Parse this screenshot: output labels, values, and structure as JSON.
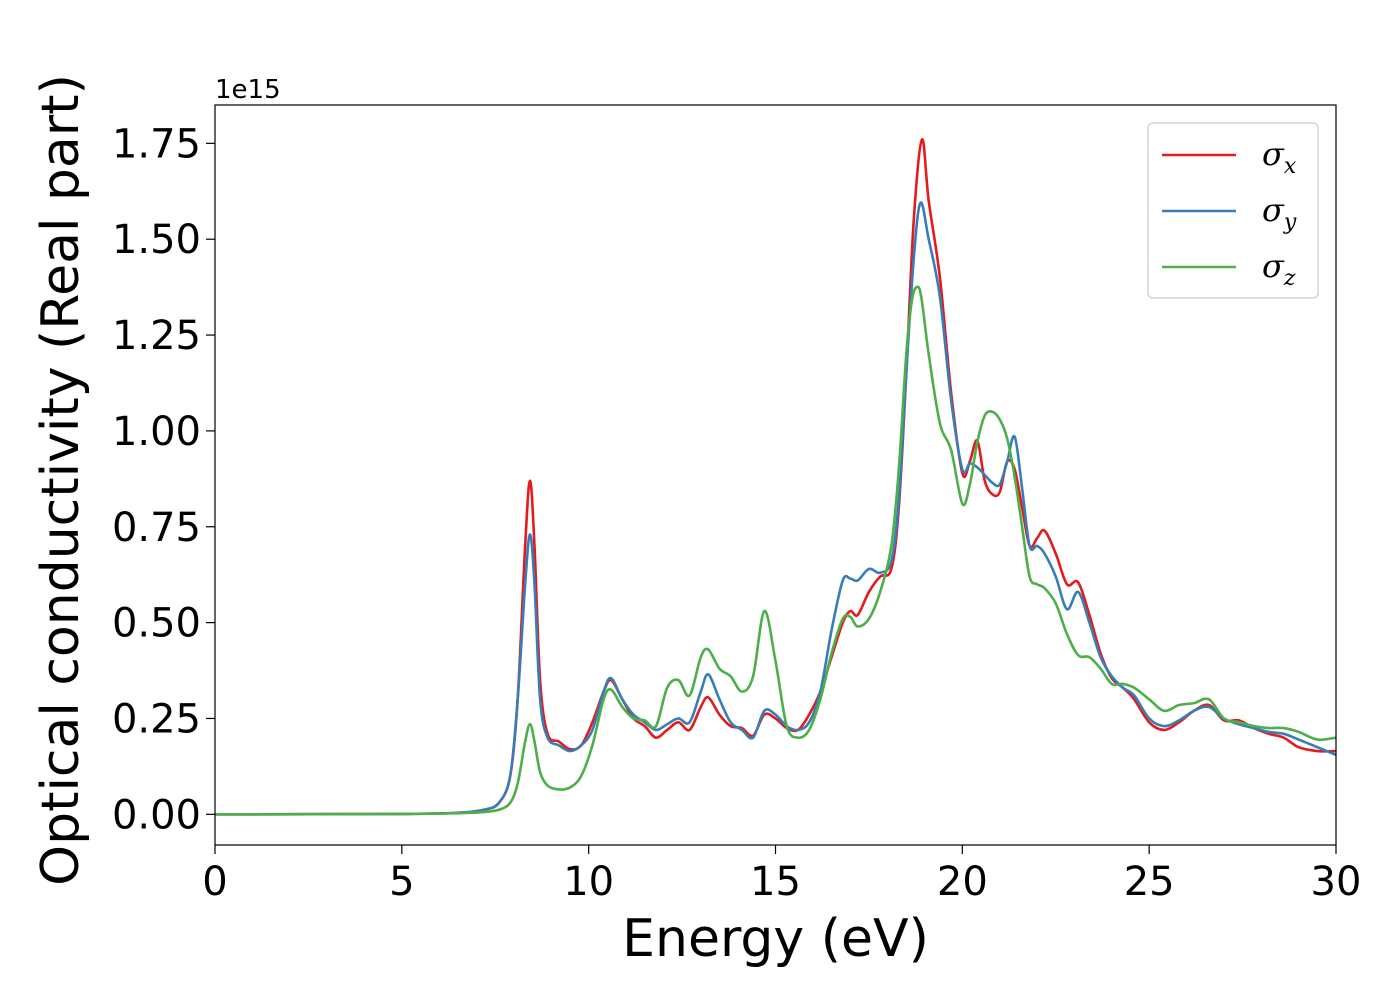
{
  "chart_data": {
    "type": "line",
    "xlabel": "Energy (eV)",
    "ylabel": "Optical conductivity (Real part)",
    "y_offset_label": "1e15",
    "xlim": [
      0,
      30
    ],
    "ylim": [
      -0.08,
      1.85
    ],
    "x_ticks": [
      0,
      5,
      10,
      15,
      20,
      25,
      30
    ],
    "y_ticks": [
      0.0,
      0.25,
      0.5,
      0.75,
      1.0,
      1.25,
      1.5,
      1.75
    ],
    "y_tick_labels": [
      "0.00",
      "0.25",
      "0.50",
      "0.75",
      "1.00",
      "1.25",
      "1.50",
      "1.75"
    ],
    "grid": false,
    "legend_position": "top-right",
    "series": [
      {
        "name": "σ_x",
        "legend_base": "σ",
        "legend_sub": "x",
        "color": "#e41a1c",
        "points": [
          [
            0,
            0
          ],
          [
            5,
            0.001
          ],
          [
            6.5,
            0.004
          ],
          [
            7.2,
            0.012
          ],
          [
            7.6,
            0.03
          ],
          [
            7.9,
            0.1
          ],
          [
            8.1,
            0.3
          ],
          [
            8.3,
            0.7
          ],
          [
            8.43,
            0.87
          ],
          [
            8.55,
            0.7
          ],
          [
            8.7,
            0.35
          ],
          [
            8.9,
            0.21
          ],
          [
            9.2,
            0.19
          ],
          [
            9.5,
            0.17
          ],
          [
            9.8,
            0.18
          ],
          [
            10.1,
            0.24
          ],
          [
            10.4,
            0.32
          ],
          [
            10.6,
            0.35
          ],
          [
            10.9,
            0.3
          ],
          [
            11.2,
            0.25
          ],
          [
            11.5,
            0.23
          ],
          [
            11.8,
            0.2
          ],
          [
            12.1,
            0.22
          ],
          [
            12.4,
            0.24
          ],
          [
            12.7,
            0.22
          ],
          [
            13.0,
            0.28
          ],
          [
            13.2,
            0.305
          ],
          [
            13.5,
            0.26
          ],
          [
            13.8,
            0.23
          ],
          [
            14.1,
            0.225
          ],
          [
            14.4,
            0.205
          ],
          [
            14.7,
            0.26
          ],
          [
            15.0,
            0.25
          ],
          [
            15.3,
            0.225
          ],
          [
            15.6,
            0.22
          ],
          [
            15.9,
            0.26
          ],
          [
            16.2,
            0.32
          ],
          [
            16.5,
            0.41
          ],
          [
            16.8,
            0.5
          ],
          [
            17.0,
            0.53
          ],
          [
            17.2,
            0.52
          ],
          [
            17.5,
            0.58
          ],
          [
            17.8,
            0.62
          ],
          [
            18.1,
            0.64
          ],
          [
            18.3,
            0.8
          ],
          [
            18.5,
            1.15
          ],
          [
            18.7,
            1.55
          ],
          [
            18.92,
            1.76
          ],
          [
            19.1,
            1.6
          ],
          [
            19.4,
            1.4
          ],
          [
            19.7,
            1.1
          ],
          [
            20.0,
            0.89
          ],
          [
            20.2,
            0.92
          ],
          [
            20.4,
            0.975
          ],
          [
            20.6,
            0.87
          ],
          [
            20.8,
            0.835
          ],
          [
            21.0,
            0.84
          ],
          [
            21.2,
            0.92
          ],
          [
            21.4,
            0.9
          ],
          [
            21.6,
            0.8
          ],
          [
            21.8,
            0.7
          ],
          [
            22.0,
            0.72
          ],
          [
            22.2,
            0.74
          ],
          [
            22.5,
            0.68
          ],
          [
            22.8,
            0.6
          ],
          [
            23.1,
            0.605
          ],
          [
            23.4,
            0.52
          ],
          [
            23.7,
            0.42
          ],
          [
            24.0,
            0.355
          ],
          [
            24.3,
            0.33
          ],
          [
            24.6,
            0.3
          ],
          [
            25.0,
            0.24
          ],
          [
            25.4,
            0.22
          ],
          [
            25.8,
            0.24
          ],
          [
            26.2,
            0.27
          ],
          [
            26.6,
            0.285
          ],
          [
            27.0,
            0.245
          ],
          [
            27.4,
            0.245
          ],
          [
            27.8,
            0.225
          ],
          [
            28.2,
            0.21
          ],
          [
            28.6,
            0.2
          ],
          [
            29.0,
            0.175
          ],
          [
            29.5,
            0.165
          ],
          [
            30,
            0.165
          ]
        ]
      },
      {
        "name": "σ_y",
        "legend_base": "σ",
        "legend_sub": "y",
        "color": "#377eb8",
        "points": [
          [
            0,
            0
          ],
          [
            5,
            0.001
          ],
          [
            6.5,
            0.004
          ],
          [
            7.2,
            0.012
          ],
          [
            7.6,
            0.03
          ],
          [
            7.9,
            0.1
          ],
          [
            8.1,
            0.3
          ],
          [
            8.3,
            0.6
          ],
          [
            8.43,
            0.73
          ],
          [
            8.55,
            0.6
          ],
          [
            8.7,
            0.3
          ],
          [
            8.9,
            0.2
          ],
          [
            9.2,
            0.18
          ],
          [
            9.5,
            0.165
          ],
          [
            9.8,
            0.18
          ],
          [
            10.1,
            0.22
          ],
          [
            10.4,
            0.32
          ],
          [
            10.6,
            0.355
          ],
          [
            10.9,
            0.3
          ],
          [
            11.2,
            0.26
          ],
          [
            11.5,
            0.24
          ],
          [
            11.8,
            0.22
          ],
          [
            12.1,
            0.235
          ],
          [
            12.4,
            0.25
          ],
          [
            12.7,
            0.24
          ],
          [
            13.0,
            0.32
          ],
          [
            13.2,
            0.365
          ],
          [
            13.5,
            0.3
          ],
          [
            13.8,
            0.24
          ],
          [
            14.1,
            0.22
          ],
          [
            14.4,
            0.2
          ],
          [
            14.7,
            0.27
          ],
          [
            15.0,
            0.26
          ],
          [
            15.3,
            0.23
          ],
          [
            15.6,
            0.22
          ],
          [
            15.9,
            0.24
          ],
          [
            16.2,
            0.32
          ],
          [
            16.5,
            0.48
          ],
          [
            16.8,
            0.61
          ],
          [
            17.0,
            0.615
          ],
          [
            17.2,
            0.61
          ],
          [
            17.5,
            0.64
          ],
          [
            17.8,
            0.63
          ],
          [
            18.1,
            0.66
          ],
          [
            18.3,
            0.82
          ],
          [
            18.5,
            1.15
          ],
          [
            18.7,
            1.45
          ],
          [
            18.88,
            1.595
          ],
          [
            19.1,
            1.5
          ],
          [
            19.4,
            1.35
          ],
          [
            19.7,
            1.08
          ],
          [
            20.0,
            0.9
          ],
          [
            20.2,
            0.915
          ],
          [
            20.4,
            0.905
          ],
          [
            20.6,
            0.885
          ],
          [
            20.8,
            0.865
          ],
          [
            21.0,
            0.86
          ],
          [
            21.2,
            0.92
          ],
          [
            21.4,
            0.985
          ],
          [
            21.6,
            0.85
          ],
          [
            21.8,
            0.7
          ],
          [
            22.0,
            0.7
          ],
          [
            22.2,
            0.68
          ],
          [
            22.5,
            0.62
          ],
          [
            22.8,
            0.535
          ],
          [
            23.1,
            0.58
          ],
          [
            23.4,
            0.5
          ],
          [
            23.7,
            0.41
          ],
          [
            24.0,
            0.36
          ],
          [
            24.3,
            0.33
          ],
          [
            24.6,
            0.31
          ],
          [
            25.0,
            0.25
          ],
          [
            25.4,
            0.23
          ],
          [
            25.8,
            0.245
          ],
          [
            26.2,
            0.27
          ],
          [
            26.6,
            0.28
          ],
          [
            27.0,
            0.25
          ],
          [
            27.4,
            0.235
          ],
          [
            27.8,
            0.225
          ],
          [
            28.2,
            0.215
          ],
          [
            28.6,
            0.21
          ],
          [
            29.0,
            0.195
          ],
          [
            29.5,
            0.175
          ],
          [
            30,
            0.155
          ]
        ]
      },
      {
        "name": "σ_z",
        "legend_base": "σ",
        "legend_sub": "z",
        "color": "#4daf4a",
        "points": [
          [
            0,
            0
          ],
          [
            5,
            0.001
          ],
          [
            6.5,
            0.003
          ],
          [
            7.2,
            0.006
          ],
          [
            7.6,
            0.012
          ],
          [
            7.9,
            0.03
          ],
          [
            8.1,
            0.08
          ],
          [
            8.3,
            0.19
          ],
          [
            8.43,
            0.235
          ],
          [
            8.55,
            0.19
          ],
          [
            8.7,
            0.11
          ],
          [
            8.9,
            0.075
          ],
          [
            9.2,
            0.065
          ],
          [
            9.5,
            0.07
          ],
          [
            9.8,
            0.1
          ],
          [
            10.1,
            0.18
          ],
          [
            10.4,
            0.3
          ],
          [
            10.6,
            0.325
          ],
          [
            10.9,
            0.28
          ],
          [
            11.2,
            0.25
          ],
          [
            11.5,
            0.245
          ],
          [
            11.8,
            0.23
          ],
          [
            12.1,
            0.33
          ],
          [
            12.4,
            0.35
          ],
          [
            12.7,
            0.31
          ],
          [
            13.0,
            0.41
          ],
          [
            13.2,
            0.43
          ],
          [
            13.5,
            0.38
          ],
          [
            13.8,
            0.36
          ],
          [
            14.1,
            0.32
          ],
          [
            14.4,
            0.36
          ],
          [
            14.7,
            0.53
          ],
          [
            15.0,
            0.4
          ],
          [
            15.3,
            0.23
          ],
          [
            15.6,
            0.2
          ],
          [
            15.9,
            0.22
          ],
          [
            16.2,
            0.3
          ],
          [
            16.5,
            0.42
          ],
          [
            16.8,
            0.51
          ],
          [
            17.0,
            0.515
          ],
          [
            17.2,
            0.49
          ],
          [
            17.5,
            0.51
          ],
          [
            17.8,
            0.58
          ],
          [
            18.1,
            0.7
          ],
          [
            18.3,
            0.9
          ],
          [
            18.5,
            1.2
          ],
          [
            18.65,
            1.34
          ],
          [
            18.78,
            1.375
          ],
          [
            18.9,
            1.35
          ],
          [
            19.1,
            1.2
          ],
          [
            19.4,
            1.02
          ],
          [
            19.7,
            0.95
          ],
          [
            20.0,
            0.81
          ],
          [
            20.2,
            0.86
          ],
          [
            20.4,
            0.97
          ],
          [
            20.6,
            1.04
          ],
          [
            20.8,
            1.05
          ],
          [
            21.0,
            1.03
          ],
          [
            21.2,
            0.98
          ],
          [
            21.4,
            0.88
          ],
          [
            21.6,
            0.75
          ],
          [
            21.8,
            0.62
          ],
          [
            22.0,
            0.6
          ],
          [
            22.2,
            0.59
          ],
          [
            22.5,
            0.55
          ],
          [
            22.8,
            0.47
          ],
          [
            23.1,
            0.415
          ],
          [
            23.4,
            0.41
          ],
          [
            23.7,
            0.38
          ],
          [
            24.0,
            0.34
          ],
          [
            24.3,
            0.34
          ],
          [
            24.6,
            0.33
          ],
          [
            25.0,
            0.3
          ],
          [
            25.4,
            0.27
          ],
          [
            25.8,
            0.285
          ],
          [
            26.2,
            0.29
          ],
          [
            26.6,
            0.3
          ],
          [
            27.0,
            0.25
          ],
          [
            27.4,
            0.24
          ],
          [
            27.8,
            0.23
          ],
          [
            28.2,
            0.225
          ],
          [
            28.6,
            0.225
          ],
          [
            29.0,
            0.215
          ],
          [
            29.5,
            0.195
          ],
          [
            30,
            0.2
          ]
        ]
      }
    ]
  }
}
